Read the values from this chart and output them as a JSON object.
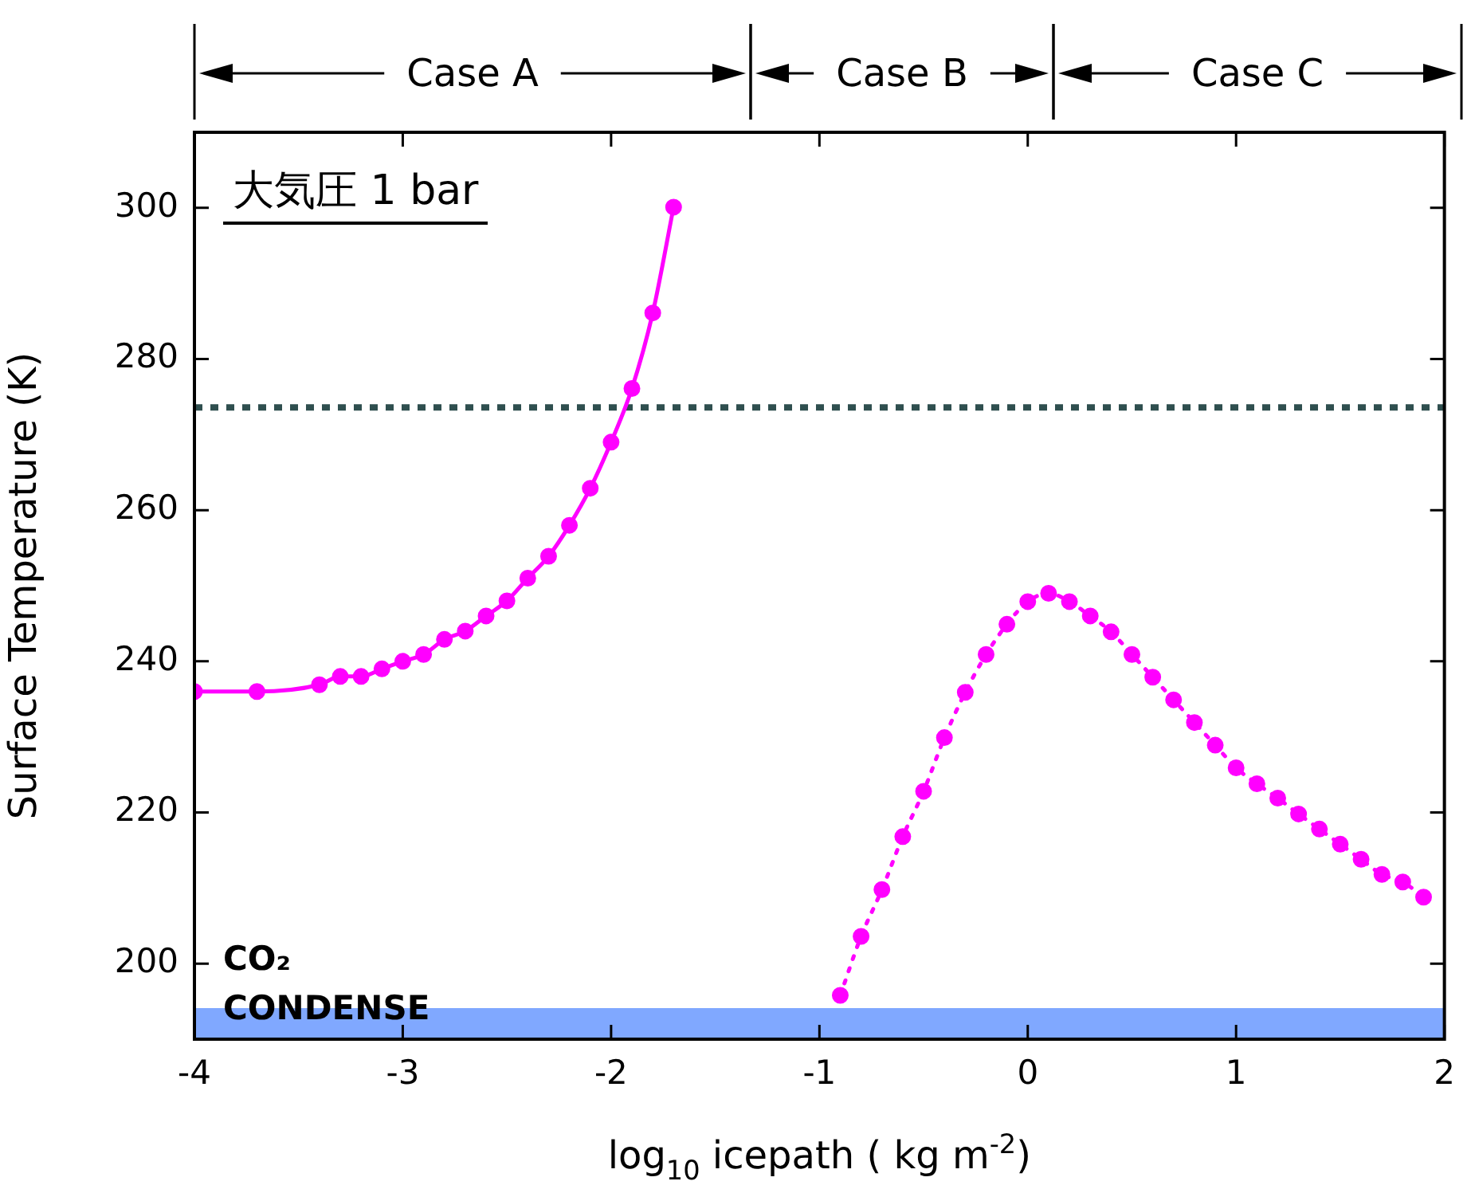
{
  "chart_data": {
    "type": "line",
    "xlabel": "log$_{10}$ icepath ( kg m$^{-2}$)",
    "ylabel": "Surface Temperature (K)",
    "annotations": [
      "大気圧 1 bar",
      "Case A",
      "Case B",
      "Case C"
    ],
    "series": [
      {
        "color": "#ff00ff",
        "line_style": "solid",
        "x": [
          -4.0,
          -3.7,
          -3.4,
          -3.3,
          -3.2,
          -3.1,
          -3.0,
          -2.9,
          -2.8,
          -2.7,
          -2.6,
          -2.5,
          -2.4,
          -2.3,
          -2.2,
          -2.1,
          -2.0,
          -1.9,
          -1.8,
          -1.7
        ],
        "values": [
          236.0,
          236.0,
          236.9,
          238.0,
          238.0,
          239.0,
          240.0,
          240.9,
          242.9,
          244.0,
          246.0,
          248.0,
          251.0,
          253.9,
          258.0,
          262.9,
          269.0,
          276.1,
          286.1,
          300.1
        ]
      },
      {
        "color": "#ff00ff",
        "line_style": "dotted",
        "x": [
          -0.9,
          -0.8,
          -0.7,
          -0.6,
          -0.5,
          -0.4,
          -0.3,
          -0.2,
          -0.1,
          0.0,
          0.1,
          0.2,
          0.3,
          0.4,
          0.5,
          0.6,
          0.7,
          0.8,
          0.9,
          1.0,
          1.1,
          1.2,
          1.3,
          1.4,
          1.5,
          1.6,
          1.7,
          1.8,
          1.9
        ],
        "values": [
          195.8,
          203.6,
          209.8,
          216.8,
          222.8,
          229.9,
          235.9,
          240.9,
          244.9,
          247.9,
          249.0,
          247.9,
          246.0,
          243.9,
          240.9,
          237.9,
          234.9,
          231.9,
          228.9,
          225.9,
          223.8,
          221.9,
          219.8,
          217.8,
          215.8,
          213.8,
          211.8,
          210.8,
          208.8
        ]
      }
    ],
    "marker": "circle",
    "grid": false,
    "legend": false,
    "xlim": [
      -4,
      2
    ],
    "xticks": [
      -4,
      -3,
      -2,
      -1,
      0,
      1,
      2
    ],
    "ylim": [
      190,
      310
    ],
    "yticks": [
      200,
      220,
      240,
      260,
      280,
      300
    ],
    "ref_lines": [
      {
        "axis": "y",
        "value": 273.6,
        "color": "#2f4f4f",
        "line_style": "dotted"
      }
    ],
    "bands": [
      {
        "axis": "y",
        "from": 190,
        "to": 194.1,
        "color": "#80a8ff",
        "label": "CO₂ CONDENSE"
      }
    ]
  }
}
